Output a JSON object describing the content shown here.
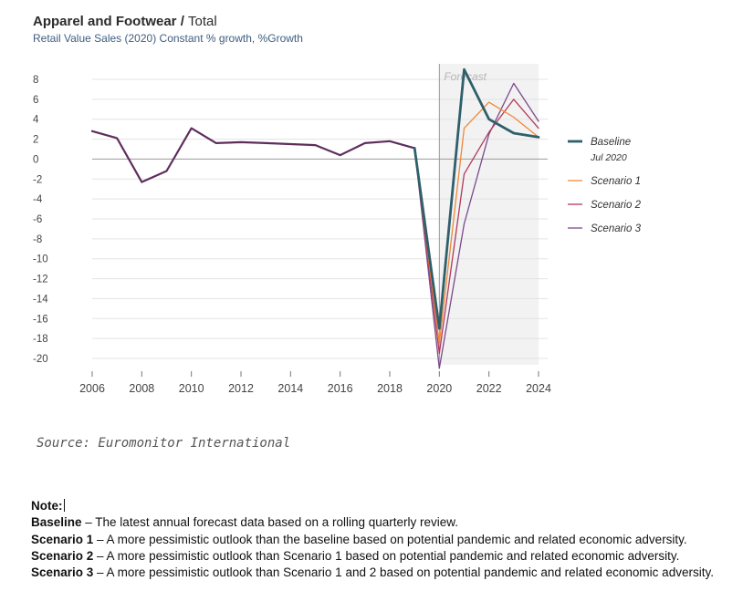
{
  "header": {
    "title_main": "Apparel and Footwear /",
    "title_sub": "Total",
    "subtitle": "Retail Value Sales (2020) Constant % growth, %Growth"
  },
  "chart_data": {
    "type": "line",
    "forecast_label": "Forecast",
    "forecast_start": 2020,
    "x_ticks": [
      2006,
      2008,
      2010,
      2012,
      2014,
      2016,
      2018,
      2020,
      2022,
      2024
    ],
    "y_ticks": [
      8,
      6,
      4,
      2,
      0,
      -2,
      -4,
      -6,
      -8,
      -10,
      -12,
      -14,
      -16,
      -18,
      -20
    ],
    "xlim": [
      2006,
      2024
    ],
    "ylim": [
      -20,
      8
    ],
    "grid": true,
    "legend_position": "right",
    "history": {
      "color": "#5e2d5c",
      "x": [
        2006,
        2007,
        2008,
        2009,
        2010,
        2011,
        2012,
        2013,
        2014,
        2015,
        2016,
        2017,
        2018,
        2019
      ],
      "values": [
        2.8,
        2.1,
        -2.3,
        -1.2,
        3.1,
        1.6,
        1.7,
        1.6,
        1.5,
        1.4,
        0.4,
        1.6,
        1.8,
        1.1
      ]
    },
    "series": [
      {
        "name": "Baseline",
        "name_line2": "Jul 2020",
        "color": "#2f5f6b",
        "x": [
          2019,
          2020,
          2021,
          2022,
          2023,
          2024
        ],
        "values": [
          1.1,
          -17,
          9.0,
          4.0,
          2.6,
          2.2
        ]
      },
      {
        "name": "Scenario 1",
        "color": "#f0883a",
        "x": [
          2019,
          2020,
          2021,
          2022,
          2023,
          2024
        ],
        "values": [
          1.1,
          -18.5,
          3.1,
          5.7,
          4.2,
          2.2
        ]
      },
      {
        "name": "Scenario 2",
        "color": "#b03a5b",
        "x": [
          2019,
          2020,
          2021,
          2022,
          2023,
          2024
        ],
        "values": [
          1.1,
          -19.5,
          -1.5,
          2.7,
          6.0,
          3.1
        ]
      },
      {
        "name": "Scenario 3",
        "color": "#7a4a8c",
        "x": [
          2019,
          2020,
          2021,
          2022,
          2023,
          2024
        ],
        "values": [
          1.1,
          -21.0,
          -6.5,
          2.5,
          7.6,
          3.8
        ]
      }
    ]
  },
  "source": "Source: Euromonitor International",
  "notes": {
    "heading": "Note:",
    "items": [
      {
        "term": "Baseline",
        "text": " – The latest annual forecast data based on a rolling quarterly review."
      },
      {
        "term": "Scenario 1",
        "text": " – A more pessimistic outlook than the baseline based on potential pandemic and related economic adversity."
      },
      {
        "term": "Scenario 2",
        "text": " – A more pessimistic outlook than Scenario 1 based on potential pandemic and related economic adversity."
      },
      {
        "term": "Scenario 3",
        "text": " – A more pessimistic outlook than Scenario 1 and 2 based on potential pandemic and related economic adversity."
      }
    ]
  }
}
